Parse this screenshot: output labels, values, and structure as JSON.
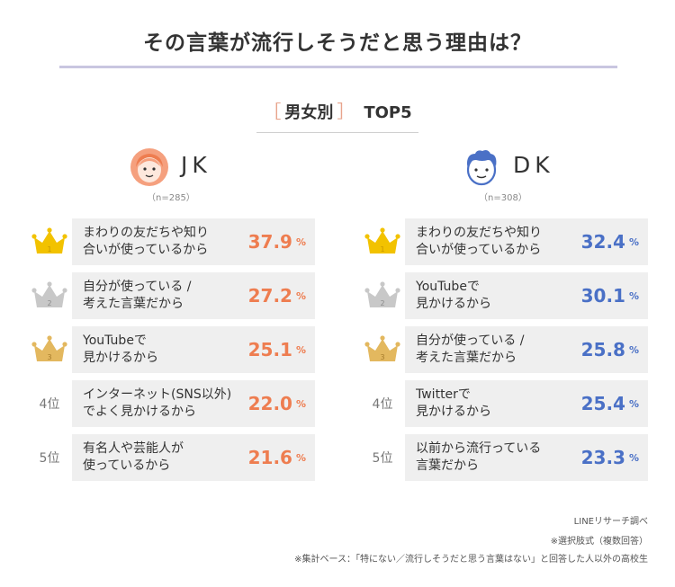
{
  "title": "その言葉が流行しそうだと思う理由は？",
  "subtitle": {
    "bracket_open": "［",
    "category": "男女別",
    "bracket_close": "］",
    "top": "TOP5"
  },
  "colors": {
    "jk_accent": "#ee7d50",
    "dk_accent": "#4a70c6",
    "gold": "#f2c200",
    "silver": "#c8c8c8",
    "bronze": "#e3b85f"
  },
  "groups": [
    {
      "label": "JK",
      "n": "（n=285）",
      "icon": "girl-face-icon",
      "items": [
        {
          "rank_label": "1",
          "text": "まわりの友だちや知り\n合いが使っているから",
          "value": "37.9",
          "unit": "%"
        },
        {
          "rank_label": "2",
          "text": "自分が使っている /\n考えた言葉だから",
          "value": "27.2",
          "unit": "%"
        },
        {
          "rank_label": "3",
          "text": "YouTubeで\n見かけるから",
          "value": "25.1",
          "unit": "%"
        },
        {
          "rank_label": "4位",
          "text": "インターネット(SNS以外)\nでよく見かけるから",
          "value": "22.0",
          "unit": "%"
        },
        {
          "rank_label": "5位",
          "text": "有名人や芸能人が\n使っているから",
          "value": "21.6",
          "unit": "%"
        }
      ]
    },
    {
      "label": "DK",
      "n": "（n=308）",
      "icon": "boy-face-icon",
      "items": [
        {
          "rank_label": "1",
          "text": "まわりの友だちや知り\n合いが使っているから",
          "value": "32.4",
          "unit": "%"
        },
        {
          "rank_label": "2",
          "text": "YouTubeで\n見かけるから",
          "value": "30.1",
          "unit": "%"
        },
        {
          "rank_label": "3",
          "text": "自分が使っている /\n考えた言葉だから",
          "value": "25.8",
          "unit": "%"
        },
        {
          "rank_label": "4位",
          "text": "Twitterで\n見かけるから",
          "value": "25.4",
          "unit": "%"
        },
        {
          "rank_label": "5位",
          "text": "以前から流行っている\n言葉だから",
          "value": "23.3",
          "unit": "%"
        }
      ]
    }
  ],
  "footnotes": [
    "LINEリサーチ調べ",
    "※選択肢式（複数回答）",
    "※集計ベース：「特にない／流行しそうだと思う言葉はない」と回答した人以外の高校生"
  ],
  "chart_data": {
    "type": "table",
    "title": "その言葉が流行しそうだと思う理由は？",
    "subtitle": "男女別 TOP5",
    "series": [
      {
        "name": "JK",
        "categories": [
          "まわりの友だちや知り合いが使っているから",
          "自分が使っている / 考えた言葉だから",
          "YouTubeで見かけるから",
          "インターネット(SNS以外)でよく見かけるから",
          "有名人や芸能人が使っているから"
        ],
        "values": [
          37.9,
          27.2,
          25.1,
          22.0,
          21.6
        ]
      },
      {
        "name": "DK",
        "categories": [
          "まわりの友だちや知り合いが使っているから",
          "YouTubeで見かけるから",
          "自分が使っている / 考えた言葉だから",
          "Twitterで見かけるから",
          "以前から流行っている言葉だから"
        ],
        "values": [
          32.4,
          30.1,
          25.8,
          25.4,
          23.3
        ]
      }
    ]
  }
}
